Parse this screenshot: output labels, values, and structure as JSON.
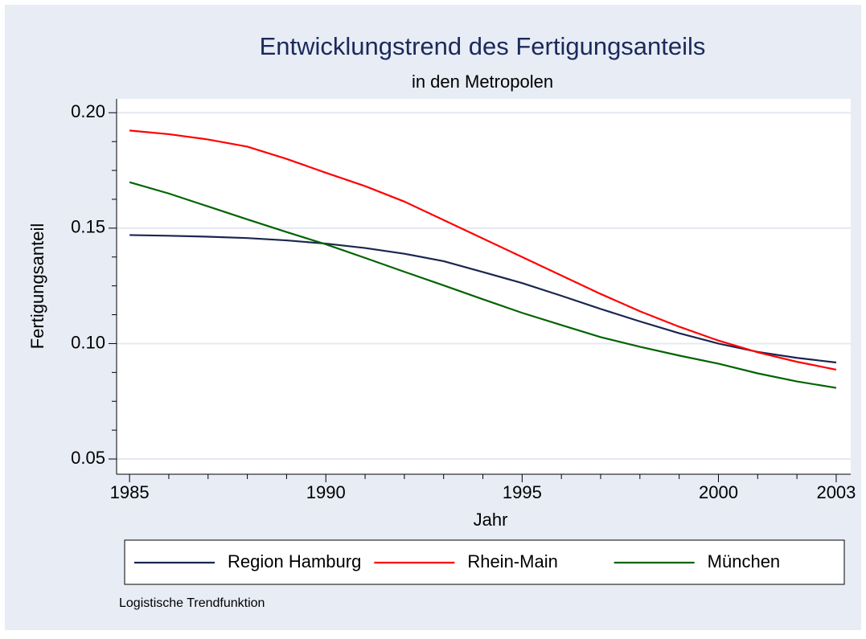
{
  "chart_data": {
    "type": "line",
    "title": "Entwicklungstrend des Fertigungsanteils",
    "subtitle": "in den Metropolen",
    "x_label": "Jahr",
    "y_label": "Fertigungsanteil",
    "note": "Logistische Trendfunktion",
    "x": [
      1985,
      1986,
      1987,
      1988,
      1989,
      1990,
      1991,
      1992,
      1993,
      1994,
      1995,
      1996,
      1997,
      1998,
      1999,
      2000,
      2001,
      2002,
      2003
    ],
    "series": [
      {
        "name": "Region Hamburg",
        "color": "#1a2550",
        "values": [
          0.147,
          0.1467,
          0.1463,
          0.1457,
          0.1447,
          0.1433,
          0.1414,
          0.1389,
          0.1357,
          0.131,
          0.1262,
          0.1207,
          0.115,
          0.1096,
          0.1045,
          0.1,
          0.0964,
          0.0938,
          0.0918
        ]
      },
      {
        "name": "Rhein-Main",
        "color": "#ff0000",
        "values": [
          0.1923,
          0.1907,
          0.1884,
          0.1853,
          0.18,
          0.174,
          0.1682,
          0.1615,
          0.1535,
          0.1455,
          0.1375,
          0.1295,
          0.1215,
          0.114,
          0.1073,
          0.1013,
          0.0962,
          0.0921,
          0.0887
        ]
      },
      {
        "name": "München",
        "color": "#006400",
        "values": [
          0.1699,
          0.165,
          0.1594,
          0.1538,
          0.1483,
          0.143,
          0.1371,
          0.1311,
          0.1252,
          0.1192,
          0.1133,
          0.108,
          0.1028,
          0.0986,
          0.0948,
          0.0913,
          0.0871,
          0.0836,
          0.0808
        ]
      }
    ],
    "xlim": [
      1984.67,
      2003.37
    ],
    "ylim": [
      0.0434,
      0.206
    ],
    "xticks": [
      1985,
      1990,
      1995,
      2000,
      2003
    ],
    "xminorticks": [
      1986,
      1987,
      1988,
      1989,
      1991,
      1992,
      1993,
      1994,
      1996,
      1997,
      1998,
      1999,
      2001,
      2002
    ],
    "yticks": [
      {
        "value": 0.05,
        "label": "0.05"
      },
      {
        "value": 0.1,
        "label": "0.10"
      },
      0.15,
      {
        "value": 0.2,
        "label": "0.20"
      }
    ],
    "yminorticks": [
      0.0625,
      0.075,
      0.0875,
      0.1125,
      0.125,
      0.1375,
      0.1625,
      0.175,
      0.1875
    ],
    "grid": true,
    "legend": "bottom"
  }
}
